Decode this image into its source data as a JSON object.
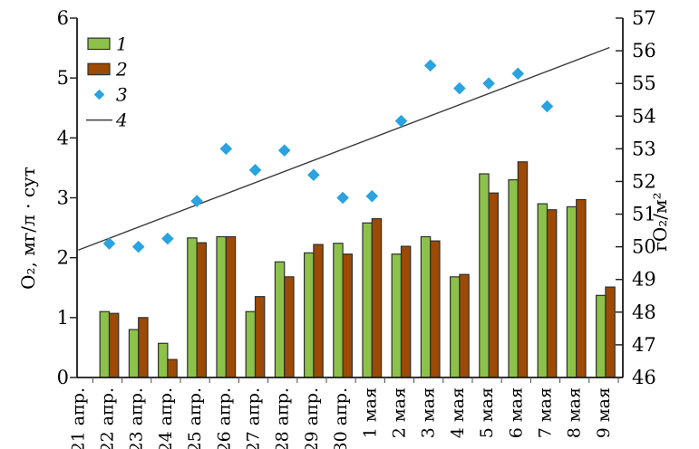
{
  "figure": {
    "background": "#ffffff",
    "text_color": "#000000"
  },
  "chart_data": {
    "type": "bar",
    "title": "",
    "categories": [
      "21 апр.",
      "22 апр.",
      "23 апр.",
      "24 апр.",
      "25 апр.",
      "26 апр.",
      "27 апр.",
      "28 апр.",
      "29 апр.",
      "30 апр.",
      "1 мая",
      "2 мая",
      "3 мая",
      "4 мая",
      "5 мая",
      "6 мая",
      "7 мая",
      "8 мая",
      "9 мая"
    ],
    "left_axis": {
      "label": "O₂, мг/л · сут",
      "min": 0,
      "max": 6,
      "tick_step": 1
    },
    "right_axis": {
      "label": "гО₂/м²",
      "min": 46,
      "max": 57,
      "tick_step": 1
    },
    "grid": "off",
    "legend": {
      "position": "top-left",
      "labels": [
        "1",
        "2",
        "3",
        "4"
      ]
    },
    "series": [
      {
        "name": "1",
        "kind": "bar",
        "axis": "left",
        "fill": "#8dc24a",
        "stroke": "#2f2f2f",
        "values": [
          null,
          1.1,
          0.8,
          0.57,
          2.33,
          2.35,
          1.1,
          1.93,
          2.08,
          2.24,
          2.58,
          2.06,
          2.35,
          1.68,
          3.4,
          3.3,
          2.9,
          2.85,
          1.37
        ]
      },
      {
        "name": "2",
        "kind": "bar",
        "axis": "left",
        "fill": "#9c4a05",
        "stroke": "#2f2f2f",
        "values": [
          null,
          1.07,
          1.0,
          0.3,
          2.25,
          2.35,
          1.35,
          1.68,
          2.22,
          2.06,
          2.65,
          2.19,
          2.28,
          1.72,
          3.08,
          3.6,
          2.8,
          2.97,
          1.51
        ]
      },
      {
        "name": "3",
        "kind": "scatter",
        "axis": "right",
        "fill": "#2aa3df",
        "values": [
          null,
          50.1,
          50.0,
          50.25,
          51.4,
          53.0,
          52.35,
          52.95,
          52.2,
          51.5,
          51.55,
          53.85,
          55.55,
          54.85,
          55.0,
          55.3,
          54.3,
          null,
          null
        ]
      },
      {
        "name": "4",
        "kind": "line",
        "axis": "right",
        "stroke": "#3b3b3b",
        "trend": {
          "start_index": 0,
          "start_value": 49.9,
          "end_index": 18.2,
          "end_value": 56.1
        }
      }
    ]
  }
}
